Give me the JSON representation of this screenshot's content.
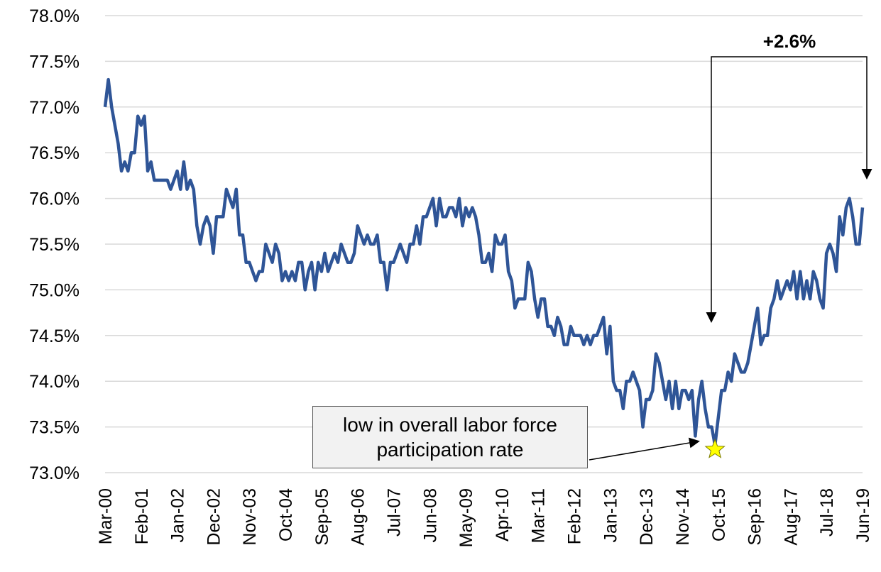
{
  "chart_data": {
    "type": "line",
    "categories": [
      "Mar-00",
      null,
      null,
      null,
      null,
      null,
      null,
      null,
      null,
      null,
      null,
      "Feb-01",
      null,
      null,
      null,
      null,
      null,
      null,
      null,
      null,
      null,
      null,
      "Jan-02",
      null,
      null,
      null,
      null,
      null,
      null,
      null,
      null,
      null,
      null,
      "Dec-02",
      null,
      null,
      null,
      null,
      null,
      null,
      null,
      null,
      null,
      null,
      "Nov-03",
      null,
      null,
      null,
      null,
      null,
      null,
      null,
      null,
      null,
      null,
      "Oct-04",
      null,
      null,
      null,
      null,
      null,
      null,
      null,
      null,
      null,
      null,
      "Sep-05",
      null,
      null,
      null,
      null,
      null,
      null,
      null,
      null,
      null,
      null,
      "Aug-06",
      null,
      null,
      null,
      null,
      null,
      null,
      null,
      null,
      null,
      null,
      "Jul-07",
      null,
      null,
      null,
      null,
      null,
      null,
      null,
      null,
      null,
      null,
      "Jun-08",
      null,
      null,
      null,
      null,
      null,
      null,
      null,
      null,
      null,
      null,
      "May-09",
      null,
      null,
      null,
      null,
      null,
      null,
      null,
      null,
      null,
      null,
      "Apr-10",
      null,
      null,
      null,
      null,
      null,
      null,
      null,
      null,
      null,
      null,
      "Mar-11",
      null,
      null,
      null,
      null,
      null,
      null,
      null,
      null,
      null,
      null,
      "Feb-12",
      null,
      null,
      null,
      null,
      null,
      null,
      null,
      null,
      null,
      null,
      "Jan-13",
      null,
      null,
      null,
      null,
      null,
      null,
      null,
      null,
      null,
      null,
      "Dec-13",
      null,
      null,
      null,
      null,
      null,
      null,
      null,
      null,
      null,
      null,
      "Nov-14",
      null,
      null,
      null,
      null,
      null,
      null,
      null,
      null,
      null,
      null,
      "Oct-15",
      null,
      null,
      null,
      null,
      null,
      null,
      null,
      null,
      null,
      null,
      "Sep-16",
      null,
      null,
      null,
      null,
      null,
      null,
      null,
      null,
      null,
      null,
      "Aug-17",
      null,
      null,
      null,
      null,
      null,
      null,
      null,
      null,
      null,
      null,
      "Jul-18",
      null,
      null,
      null,
      null,
      null,
      null,
      null,
      null,
      null,
      null,
      "Jun-19"
    ],
    "values": [
      77.0,
      77.3,
      77.0,
      76.8,
      76.6,
      76.3,
      76.4,
      76.3,
      76.5,
      76.5,
      76.9,
      76.8,
      76.9,
      76.3,
      76.4,
      76.2,
      76.2,
      76.2,
      76.2,
      76.2,
      76.1,
      76.2,
      76.3,
      76.1,
      76.4,
      76.1,
      76.2,
      76.1,
      75.7,
      75.5,
      75.7,
      75.8,
      75.7,
      75.4,
      75.8,
      75.8,
      75.8,
      76.1,
      76.0,
      75.9,
      76.1,
      75.6,
      75.6,
      75.3,
      75.3,
      75.2,
      75.1,
      75.2,
      75.2,
      75.5,
      75.4,
      75.3,
      75.5,
      75.4,
      75.1,
      75.2,
      75.1,
      75.2,
      75.1,
      75.3,
      75.3,
      75.0,
      75.2,
      75.3,
      75.0,
      75.3,
      75.2,
      75.4,
      75.2,
      75.3,
      75.4,
      75.3,
      75.5,
      75.4,
      75.3,
      75.3,
      75.4,
      75.7,
      75.6,
      75.5,
      75.6,
      75.5,
      75.5,
      75.6,
      75.3,
      75.3,
      75.0,
      75.3,
      75.3,
      75.4,
      75.5,
      75.4,
      75.3,
      75.5,
      75.5,
      75.7,
      75.5,
      75.8,
      75.8,
      75.9,
      76.0,
      75.7,
      76.0,
      75.8,
      75.8,
      75.9,
      75.9,
      75.8,
      76.0,
      75.7,
      75.9,
      75.8,
      75.9,
      75.8,
      75.6,
      75.3,
      75.3,
      75.4,
      75.2,
      75.6,
      75.5,
      75.5,
      75.6,
      75.2,
      75.1,
      74.8,
      74.9,
      74.9,
      74.9,
      75.3,
      75.2,
      74.9,
      74.7,
      74.9,
      74.9,
      74.6,
      74.6,
      74.5,
      74.7,
      74.6,
      74.4,
      74.4,
      74.6,
      74.5,
      74.5,
      74.5,
      74.4,
      74.5,
      74.4,
      74.5,
      74.5,
      74.6,
      74.7,
      74.3,
      74.6,
      74.0,
      73.9,
      73.9,
      73.7,
      74.0,
      74.0,
      74.1,
      74.0,
      73.9,
      73.5,
      73.8,
      73.8,
      73.9,
      74.3,
      74.2,
      74.0,
      73.8,
      74.0,
      73.7,
      74.0,
      73.7,
      73.9,
      73.9,
      73.8,
      73.9,
      73.4,
      73.8,
      74.0,
      73.7,
      73.5,
      73.5,
      73.3,
      73.6,
      73.9,
      73.9,
      74.1,
      74.0,
      74.3,
      74.2,
      74.1,
      74.1,
      74.2,
      74.4,
      74.6,
      74.8,
      74.4,
      74.5,
      74.5,
      74.8,
      74.9,
      75.1,
      74.9,
      75.0,
      75.1,
      75.0,
      75.2,
      74.9,
      75.2,
      74.9,
      75.1,
      74.9,
      75.2,
      75.1,
      74.9,
      74.8,
      75.4,
      75.5,
      75.4,
      75.2,
      75.8,
      75.6,
      75.9,
      76.0,
      75.8,
      75.5,
      75.5,
      75.9
    ],
    "color": "#2f5597",
    "ylim": [
      73,
      78
    ],
    "yticks": [
      {
        "value": 73,
        "label": "73.0%"
      },
      {
        "value": 73.5,
        "label": "73.5%"
      },
      {
        "value": 74,
        "label": "74.0%"
      },
      {
        "value": 74.5,
        "label": "74.5%"
      },
      {
        "value": 75,
        "label": "75.0%"
      },
      {
        "value": 75.5,
        "label": "75.5%"
      },
      {
        "value": 76,
        "label": "76.0%"
      },
      {
        "value": 76.5,
        "label": "76.5%"
      },
      {
        "value": 77,
        "label": "77.0%"
      },
      {
        "value": 77.5,
        "label": "77.5%"
      },
      {
        "value": 78,
        "label": "78.0%"
      }
    ],
    "grid": true,
    "annotations": [
      "+2.6%",
      "low in overall labor force participation rate"
    ]
  }
}
